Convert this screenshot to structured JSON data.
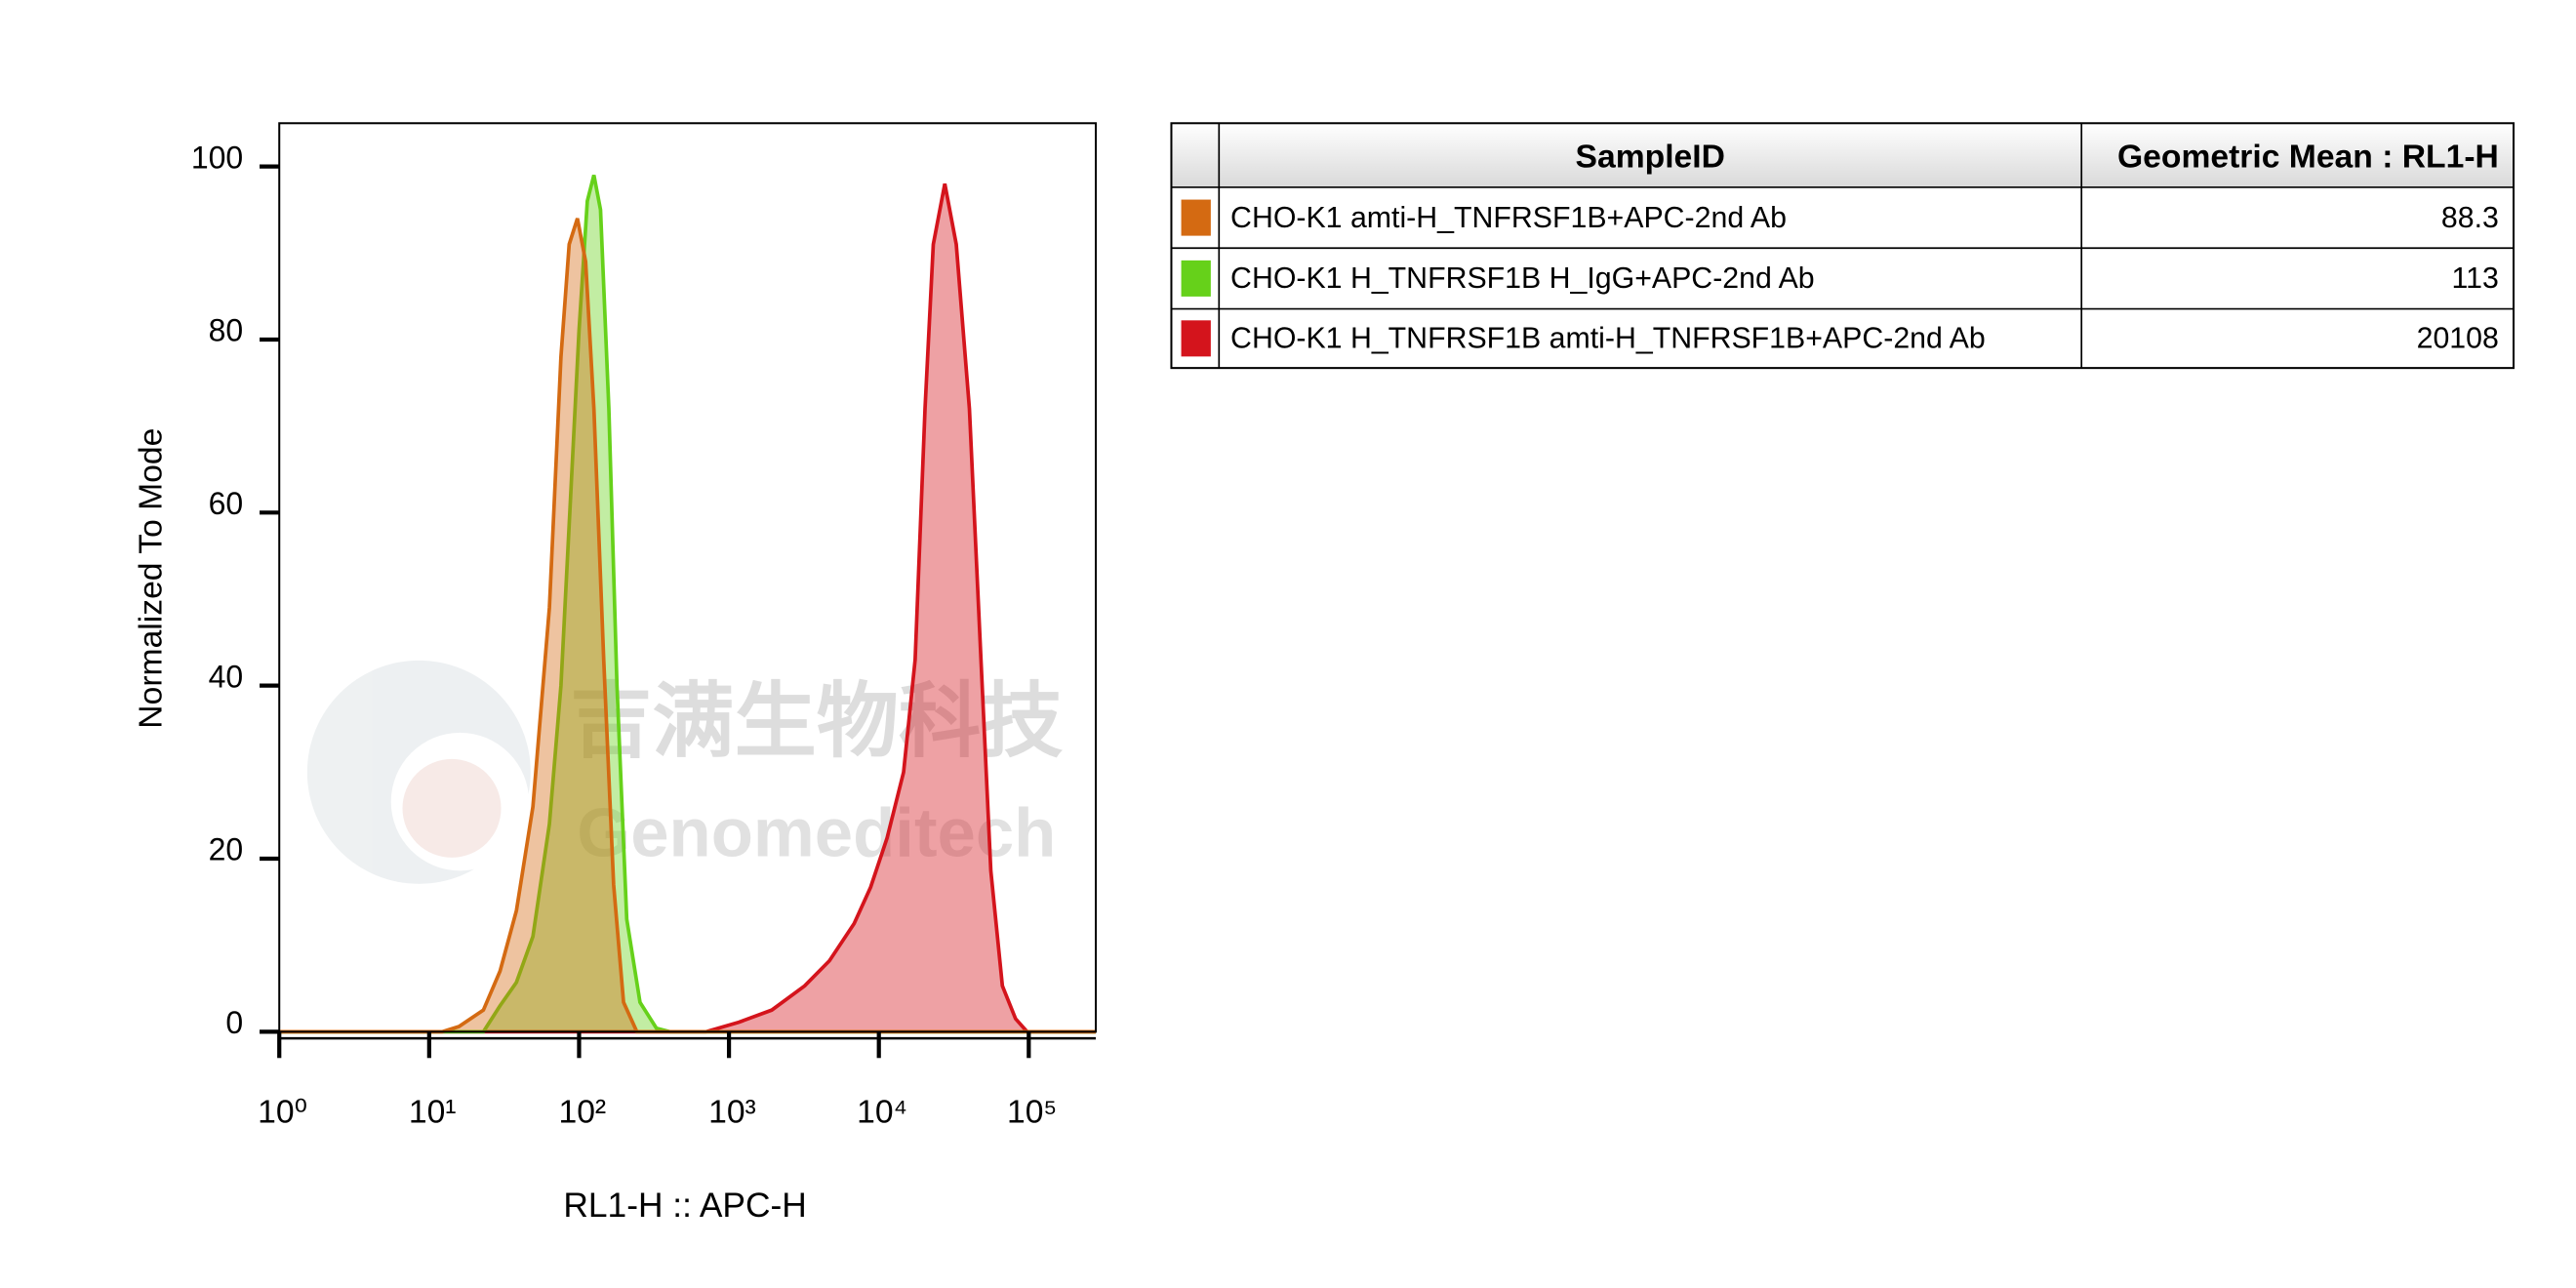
{
  "chart_data": {
    "type": "histogram-overlay",
    "x_label": "RL1-H :: APC-H",
    "y_label": "Normalized To Mode",
    "xscale": "log",
    "xlim": [
      1,
      280000
    ],
    "xticks": [
      {
        "value": 1,
        "label": "10⁰"
      },
      {
        "value": 10,
        "label": "10¹"
      },
      {
        "value": 100,
        "label": "10²"
      },
      {
        "value": 1000,
        "label": "10³"
      },
      {
        "value": 10000,
        "label": "10⁴"
      },
      {
        "value": 100000,
        "label": "10⁵"
      }
    ],
    "ylim": [
      0,
      105
    ],
    "yticks": [
      0,
      20,
      40,
      60,
      80,
      100
    ],
    "watermark": [
      "吉满生物科技",
      "Genomeditech"
    ],
    "table_headers": [
      "SampleID",
      "Geometric Mean : RL1-H"
    ],
    "series": [
      {
        "name": "CHO-K1 H_TNFRSF1B amti-H_TNFRSF1B+APC-2nd Ab",
        "color": "#d4141c",
        "geometric_mean": 20108,
        "x": [
          1,
          702,
          1164,
          1930,
          3200,
          4680,
          6840,
          8810,
          11350,
          14620,
          17460,
          20320,
          23070,
          27540,
          32840,
          40190,
          47990,
          55830,
          66680,
          81660,
          97500,
          280000
        ],
        "values": [
          0,
          0,
          1.1,
          2.5,
          5.3,
          8.2,
          12.5,
          16.7,
          22.4,
          30,
          43,
          72,
          91,
          98,
          91,
          72,
          43,
          18.6,
          5.3,
          1.5,
          0,
          0
        ]
      },
      {
        "name": "CHO-K1 H_TNFRSF1B H_IgG+APC-2nd Ab",
        "color": "#66d11a",
        "geometric_mean": 113,
        "x": [
          1,
          23,
          29.7,
          38.2,
          49.2,
          63.4,
          75.7,
          87.9,
          99.9,
          113.5,
          125.6,
          139,
          158,
          179,
          208,
          255,
          328,
          402,
          280000
        ],
        "values": [
          0,
          0,
          3,
          5.7,
          11,
          24,
          40,
          62,
          81,
          96,
          99,
          95,
          72,
          40,
          13,
          3.4,
          0.4,
          0,
          0
        ]
      },
      {
        "name": "CHO-K1 amti-H_TNFRSF1B+APC-2nd Ab",
        "color": "#d46a12",
        "geometric_mean": 88.3,
        "x": [
          1,
          12.2,
          15.8,
          23,
          29.7,
          38.2,
          49.2,
          63.4,
          75.7,
          85.9,
          97.5,
          110.6,
          125.6,
          146,
          170,
          198,
          243,
          280000
        ],
        "values": [
          0,
          0,
          0.6,
          2.5,
          7,
          14,
          26,
          49,
          78,
          91,
          94,
          89,
          72,
          43,
          17,
          3.4,
          0,
          0
        ]
      }
    ]
  }
}
